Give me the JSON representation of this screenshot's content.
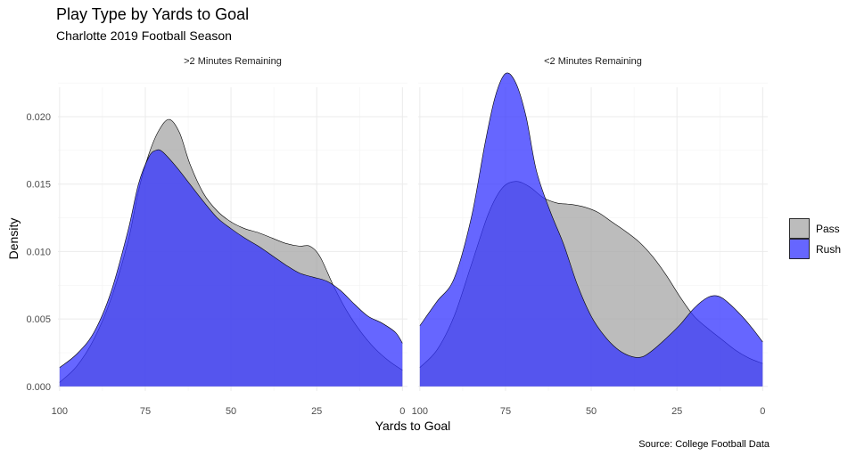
{
  "chart_data": {
    "type": "area",
    "title": "Play Type by Yards to Goal",
    "subtitle": "Charlotte 2019 Football Season",
    "xlabel": "Yards to Goal",
    "ylabel": "Density",
    "caption": "Source: College Football Data",
    "x_reversed": true,
    "xlim": [
      101,
      -2
    ],
    "ylim": [
      -0.001,
      0.0235
    ],
    "x_ticks": [
      100,
      75,
      50,
      25,
      0
    ],
    "x_tick_labels": [
      "100",
      "75",
      "50",
      "25",
      "0"
    ],
    "y_ticks": [
      0,
      0.005,
      0.01,
      0.015,
      0.02
    ],
    "y_tick_labels": [
      "0.000",
      "0.005",
      "0.010",
      "0.015",
      "0.020"
    ],
    "legend": {
      "position": "right",
      "entries": [
        {
          "name": "Pass",
          "color": "#a6a6a6"
        },
        {
          "name": "Rush",
          "color": "#3333ff"
        }
      ]
    },
    "panels": [
      {
        "label": ">2 Minutes Remaining",
        "series": [
          {
            "name": "Pass",
            "color": "#a6a6a6",
            "x": [
              100,
              95,
              90,
              85,
              80,
              77,
              74,
              71,
              68,
              65,
              62,
              58,
              54,
              50,
              46,
              42,
              38,
              34,
              30,
              27,
              24,
              20,
              16,
              12,
              8,
              4,
              0
            ],
            "y": [
              0.0003,
              0.0015,
              0.0035,
              0.0065,
              0.0108,
              0.0145,
              0.0172,
              0.019,
              0.0198,
              0.0188,
              0.0165,
              0.0143,
              0.013,
              0.0122,
              0.0117,
              0.0114,
              0.011,
              0.0106,
              0.0104,
              0.0104,
              0.0096,
              0.0074,
              0.0055,
              0.004,
              0.0028,
              0.0019,
              0.0012
            ]
          },
          {
            "name": "Rush",
            "color": "#3333ff",
            "x": [
              100,
              95,
              90,
              85,
              80,
              77,
              74,
              72,
              70,
              66,
              62,
              58,
              54,
              50,
              46,
              42,
              38,
              34,
              30,
              26,
              22,
              18,
              14,
              10,
              6,
              2,
              0
            ],
            "y": [
              0.0014,
              0.0024,
              0.004,
              0.007,
              0.0116,
              0.015,
              0.017,
              0.0175,
              0.0174,
              0.0163,
              0.015,
              0.0137,
              0.0125,
              0.0117,
              0.011,
              0.0104,
              0.0097,
              0.009,
              0.0084,
              0.0081,
              0.0078,
              0.0071,
              0.0061,
              0.0052,
              0.0047,
              0.004,
              0.0032
            ]
          }
        ]
      },
      {
        "label": "<2 Minutes Remaining",
        "series": [
          {
            "name": "Pass",
            "color": "#a6a6a6",
            "x": [
              100,
              95,
              90,
              85,
              80,
              76,
              72,
              68,
              64,
              60,
              56,
              52,
              48,
              44,
              40,
              36,
              32,
              28,
              24,
              20,
              16,
              12,
              8,
              4,
              0
            ],
            "y": [
              0.0014,
              0.0027,
              0.0052,
              0.009,
              0.0128,
              0.0147,
              0.0152,
              0.0148,
              0.014,
              0.0136,
              0.0135,
              0.0133,
              0.0129,
              0.0122,
              0.0115,
              0.0107,
              0.0096,
              0.0082,
              0.0066,
              0.0052,
              0.0043,
              0.0035,
              0.0027,
              0.0021,
              0.0017
            ]
          },
          {
            "name": "Rush",
            "color": "#3333ff",
            "x": [
              100,
              95,
              90,
              85,
              81,
              78,
              75,
              72,
              69,
              66,
              62,
              58,
              54,
              50,
              46,
              42,
              38,
              35,
              32,
              28,
              24,
              20,
              16,
              13,
              10,
              6,
              3,
              0
            ],
            "y": [
              0.0045,
              0.0063,
              0.008,
              0.0125,
              0.018,
              0.0215,
              0.0232,
              0.0225,
              0.02,
              0.016,
              0.013,
              0.0105,
              0.0075,
              0.0052,
              0.0037,
              0.0027,
              0.0022,
              0.0022,
              0.0027,
              0.0036,
              0.0046,
              0.0058,
              0.0066,
              0.0067,
              0.0062,
              0.0052,
              0.0043,
              0.0033
            ]
          }
        ]
      }
    ]
  }
}
